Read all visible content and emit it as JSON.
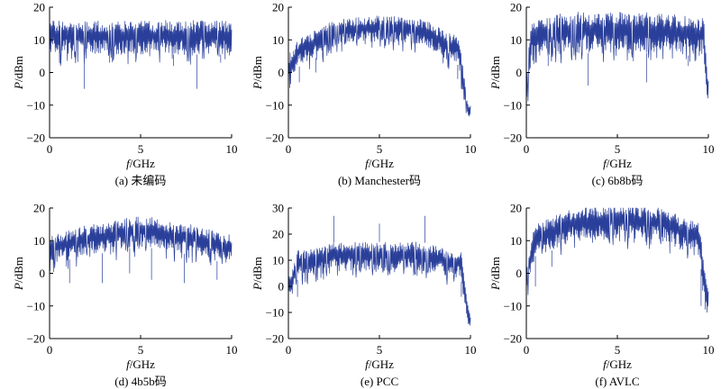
{
  "chart_data": [
    {
      "id": "a",
      "type": "line",
      "caption": "(a) 未编码",
      "xlabel": "f/GHz",
      "ylabel": "P/dBm",
      "xlim": [
        0,
        10
      ],
      "ylim": [
        -20,
        20
      ],
      "xticks": [
        0,
        5,
        10
      ],
      "yticks": [
        -20,
        -10,
        0,
        10,
        20
      ],
      "color": "#2a3f9a",
      "series": [
        {
          "x_range": [
            0,
            10
          ],
          "envelope": {
            "low": [
              5.5,
              5.5,
              5.5
            ],
            "high": [
              16,
              16,
              16
            ],
            "ctrl_x": [
              0,
              5,
              10
            ]
          },
          "dips": [
            [
              1.9,
              -5
            ],
            [
              8.1,
              -5
            ],
            [
              0.6,
              2
            ],
            [
              3.3,
              3
            ],
            [
              6.8,
              2
            ],
            [
              9.4,
              3
            ]
          ]
        }
      ]
    },
    {
      "id": "b",
      "type": "line",
      "caption": "(b) Manchester码",
      "xlabel": "f/GHz",
      "ylabel": "P/dBm",
      "xlim": [
        0,
        10
      ],
      "ylim": [
        -20,
        20
      ],
      "xticks": [
        0,
        5,
        10
      ],
      "yticks": [
        -20,
        -10,
        0,
        10,
        20
      ],
      "color": "#2a3f9a",
      "series": [
        {
          "x_range": [
            0,
            10
          ],
          "envelope": {
            "low": [
              -5,
              3,
              9,
              9.5,
              9,
              3,
              -14
            ],
            "high": [
              6,
              12,
              16.5,
              17.5,
              16.5,
              12,
              -10
            ],
            "ctrl_x": [
              0,
              0.8,
              3,
              5,
              7,
              9.2,
              10
            ]
          },
          "dips": [
            [
              0.6,
              -3
            ],
            [
              1.5,
              0
            ],
            [
              9.3,
              -2
            ]
          ]
        }
      ]
    },
    {
      "id": "c",
      "type": "line",
      "caption": "(c) 6b8b码",
      "xlabel": "f/GHz",
      "ylabel": "P/dBm",
      "xlim": [
        0,
        10
      ],
      "ylim": [
        -20,
        20
      ],
      "xticks": [
        0,
        5,
        10
      ],
      "yticks": [
        -20,
        -10,
        0,
        10,
        20
      ],
      "color": "#2a3f9a",
      "series": [
        {
          "x_range": [
            0,
            10
          ],
          "envelope": {
            "low": [
              -10,
              5,
              6,
              6,
              5,
              -10
            ],
            "high": [
              0,
              17,
              18.5,
              18.5,
              17,
              -2
            ],
            "ctrl_x": [
              0,
              0.3,
              3,
              7,
              9.7,
              10
            ]
          },
          "dips": [
            [
              3.4,
              -4
            ],
            [
              6.6,
              -3
            ],
            [
              1.2,
              2
            ],
            [
              8.9,
              2
            ]
          ]
        }
      ]
    },
    {
      "id": "d",
      "type": "line",
      "caption": "(d) 4b5b码",
      "xlabel": "f/GHz",
      "ylabel": "P/dBm",
      "xlim": [
        0,
        10
      ],
      "ylim": [
        -20,
        20
      ],
      "xticks": [
        0,
        5,
        10
      ],
      "yticks": [
        -20,
        -10,
        0,
        10,
        20
      ],
      "color": "#2a3f9a",
      "series": [
        {
          "x_range": [
            0,
            10
          ],
          "envelope": {
            "low": [
              3,
              6,
              8,
              6,
              3
            ],
            "high": [
              12,
              15,
              17.5,
              15,
              12
            ],
            "ctrl_x": [
              0,
              2.5,
              5,
              7.5,
              10
            ]
          },
          "dips": [
            [
              1.1,
              -3
            ],
            [
              2.9,
              -3
            ],
            [
              5.6,
              -2
            ],
            [
              7.4,
              -3
            ],
            [
              9.2,
              -2
            ],
            [
              4.4,
              0
            ]
          ]
        }
      ]
    },
    {
      "id": "e",
      "type": "line",
      "caption": "(e) PCC",
      "xlabel": "f/GHz",
      "ylabel": "P/dBm",
      "xlim": [
        0,
        10
      ],
      "ylim": [
        -20,
        30
      ],
      "xticks": [
        0,
        5,
        10
      ],
      "yticks": [
        -20,
        -10,
        0,
        10,
        20,
        30
      ],
      "color": "#2a3f9a",
      "series": [
        {
          "x_range": [
            0,
            10
          ],
          "envelope": {
            "low": [
              -5,
              3,
              6,
              6,
              3,
              -17
            ],
            "high": [
              5,
              14,
              17,
              17,
              14,
              -10
            ],
            "ctrl_x": [
              0,
              0.6,
              3,
              7,
              9.4,
              10
            ]
          },
          "dips": [
            [
              0.5,
              -4
            ],
            [
              9.5,
              -4
            ]
          ],
          "spikes": [
            [
              2.5,
              27
            ],
            [
              5.0,
              24
            ],
            [
              7.5,
              27
            ]
          ]
        }
      ]
    },
    {
      "id": "f",
      "type": "line",
      "caption": "(f) AVLC",
      "xlabel": "f/GHz",
      "ylabel": "P/dBm",
      "xlim": [
        0,
        10
      ],
      "ylim": [
        -20,
        20
      ],
      "xticks": [
        0,
        5,
        10
      ],
      "yticks": [
        -20,
        -10,
        0,
        10,
        20
      ],
      "color": "#2a3f9a",
      "series": [
        {
          "x_range": [
            0,
            10
          ],
          "envelope": {
            "low": [
              -5,
              6,
              10,
              10.5,
              10,
              6,
              -13
            ],
            "high": [
              5,
              16,
              20.5,
              21.5,
              20.5,
              16,
              -3
            ],
            "ctrl_x": [
              0,
              0.6,
              3,
              5,
              7,
              9.4,
              10
            ]
          },
          "dips": [
            [
              0.5,
              -4
            ],
            [
              9.6,
              -10
            ],
            [
              1.4,
              2
            ]
          ]
        }
      ]
    }
  ]
}
